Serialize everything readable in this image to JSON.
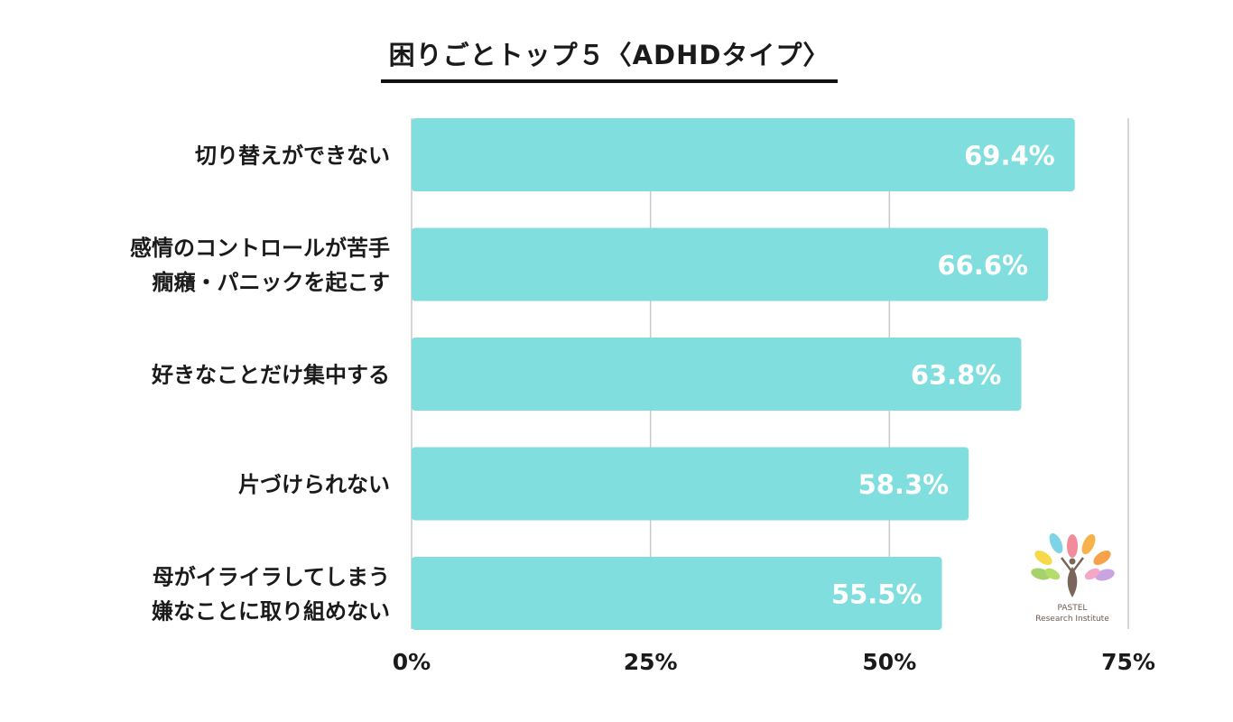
{
  "chart_data": {
    "type": "bar",
    "orientation": "horizontal",
    "title": "困りごとトップ５〈ADHDタイプ〉",
    "categories": [
      [
        "切り替えができない"
      ],
      [
        "感情のコントロールが苦手",
        "癇癪・パニックを起こす"
      ],
      [
        "好きなことだけ集中する"
      ],
      [
        "片づけられない"
      ],
      [
        "母がイライラしてしまう",
        "嫌なことに取り組めない"
      ]
    ],
    "values": [
      69.4,
      66.6,
      63.8,
      58.3,
      55.5
    ],
    "value_labels": [
      "69.4%",
      "66.6%",
      "63.8%",
      "58.3%",
      "55.5%"
    ],
    "xlim": [
      0,
      75
    ],
    "ticks": [
      0,
      25,
      50,
      75
    ],
    "tick_labels": [
      "0%",
      "25%",
      "50%",
      "75%"
    ],
    "bar_color": "#80dedf",
    "grid": true
  },
  "logo": {
    "line1": "PASTEL",
    "line2": "Research Institute"
  }
}
